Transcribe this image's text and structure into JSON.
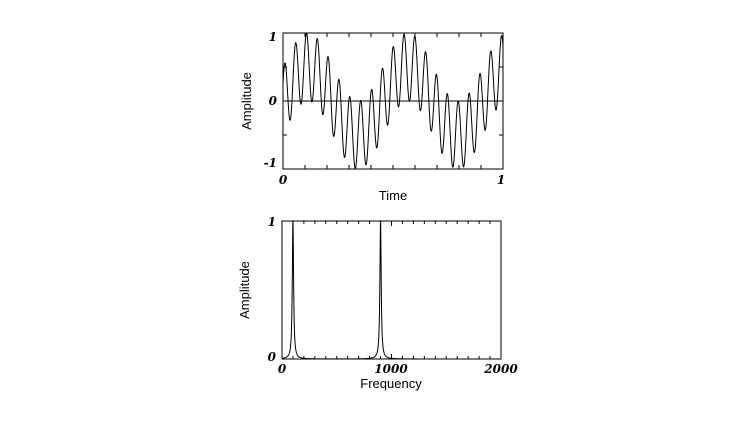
{
  "chart_data": [
    {
      "type": "line",
      "title": "",
      "xlabel": "Time",
      "ylabel": "Amplitude",
      "xlim": [
        0,
        1
      ],
      "ylim": [
        -1,
        1
      ],
      "x_ticks": [
        "0",
        "1"
      ],
      "y_ticks": [
        "1",
        "0",
        "-1"
      ],
      "grid": false,
      "series": [
        {
          "components": [
            {
              "amplitude": 0.5,
              "frequency": 2.2,
              "phase_deg": 0
            },
            {
              "amplitude": 0.5,
              "frequency": 20.3,
              "phase_deg": 30
            }
          ],
          "x_range": [
            0,
            1
          ]
        }
      ],
      "zero_line": true,
      "color": "#000000"
    },
    {
      "type": "line",
      "title": "",
      "xlabel": "Frequency",
      "ylabel": "Amplitude",
      "xlim": [
        0,
        2000
      ],
      "ylim": [
        0,
        1
      ],
      "x_ticks": [
        "0",
        "1000",
        "2000"
      ],
      "y_ticks": [
        "1",
        "0"
      ],
      "grid": false,
      "series": [
        {
          "peaks": [
            {
              "frequency": 100,
              "amplitude": 1.0
            },
            {
              "frequency": 900,
              "amplitude": 1.0
            }
          ],
          "baseline": 0.0
        }
      ],
      "color": "#000000"
    }
  ]
}
